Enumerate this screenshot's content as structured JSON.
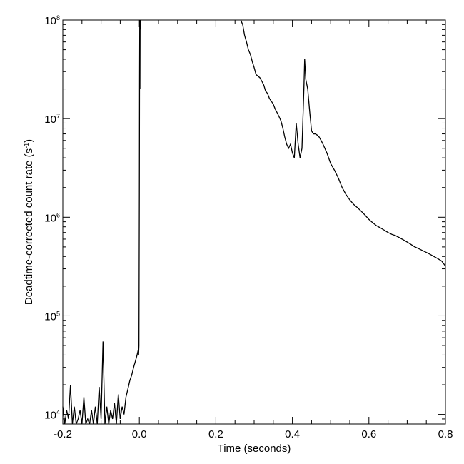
{
  "chart_data": {
    "type": "line",
    "title": "",
    "xlabel": "Time (seconds)",
    "ylabel_main": "Deadtime-corrected count rate (s",
    "ylabel_sup": "-1",
    "ylabel_close": ")",
    "xlim": [
      -0.2,
      0.8
    ],
    "ylim": [
      8000,
      100000000
    ],
    "yscale": "log",
    "grid": false,
    "legend": "none",
    "line_color": "#000000",
    "x_ticks": [
      {
        "value": -0.2,
        "label": "-0.2"
      },
      {
        "value": 0.0,
        "label": "0.0"
      },
      {
        "value": 0.2,
        "label": "0.2"
      },
      {
        "value": 0.4,
        "label": "0.4"
      },
      {
        "value": 0.6,
        "label": "0.6"
      },
      {
        "value": 0.8,
        "label": "0.8"
      }
    ],
    "y_ticks": [
      {
        "value": 10000,
        "base": "10",
        "exp": "4"
      },
      {
        "value": 100000,
        "base": "10",
        "exp": "5"
      },
      {
        "value": 1000000,
        "base": "10",
        "exp": "6"
      },
      {
        "value": 10000000,
        "base": "10",
        "exp": "7"
      },
      {
        "value": 100000000,
        "base": "10",
        "exp": "8"
      }
    ],
    "series": [
      {
        "x": [
          -0.2,
          -0.195,
          -0.19,
          -0.185,
          -0.18,
          -0.175,
          -0.17,
          -0.165,
          -0.16,
          -0.155,
          -0.15,
          -0.145,
          -0.14,
          -0.135,
          -0.13,
          -0.125,
          -0.12,
          -0.115,
          -0.11,
          -0.105,
          -0.1,
          -0.095,
          -0.09,
          -0.085,
          -0.08,
          -0.075,
          -0.07,
          -0.065,
          -0.06,
          -0.055,
          -0.05,
          -0.045,
          -0.04,
          -0.035,
          -0.03,
          -0.025,
          -0.02,
          -0.015,
          -0.01,
          -0.006,
          -0.003,
          -0.002,
          -0.001,
          0.0,
          0.0005,
          0.001,
          0.0015,
          0.002,
          0.0025,
          0.003,
          0.265,
          0.27,
          0.275,
          0.28,
          0.285,
          0.29,
          0.295,
          0.3,
          0.305,
          0.31,
          0.315,
          0.32,
          0.325,
          0.33,
          0.335,
          0.34,
          0.345,
          0.35,
          0.355,
          0.36,
          0.365,
          0.37,
          0.375,
          0.38,
          0.385,
          0.39,
          0.395,
          0.4,
          0.405,
          0.41,
          0.415,
          0.42,
          0.425,
          0.43,
          0.432,
          0.435,
          0.44,
          0.445,
          0.45,
          0.455,
          0.46,
          0.465,
          0.47,
          0.475,
          0.48,
          0.49,
          0.5,
          0.51,
          0.52,
          0.53,
          0.54,
          0.55,
          0.56,
          0.57,
          0.58,
          0.59,
          0.6,
          0.61,
          0.62,
          0.63,
          0.64,
          0.65,
          0.66,
          0.67,
          0.68,
          0.69,
          0.7,
          0.71,
          0.72,
          0.73,
          0.74,
          0.75,
          0.76,
          0.77,
          0.78,
          0.79,
          0.8
        ],
        "y": [
          12000,
          8000,
          11000,
          9000,
          20000,
          8000,
          12000,
          8000,
          9000,
          11000,
          8000,
          15000,
          8000,
          9000,
          8000,
          11000,
          8000,
          12000,
          8000,
          19000,
          9000,
          55000,
          8000,
          12000,
          8000,
          11000,
          9000,
          13000,
          8000,
          16000,
          9000,
          12000,
          10000,
          15000,
          18000,
          22000,
          25000,
          30000,
          35000,
          40000,
          45000,
          40000,
          50000,
          1800000,
          25000000,
          100000000,
          20000000,
          100000000,
          80000000,
          100000000,
          100000000,
          90000000,
          70000000,
          60000000,
          50000000,
          45000000,
          38000000,
          33000000,
          28000000,
          27000000,
          26000000,
          24000000,
          22000000,
          19000000,
          18000000,
          16000000,
          15000000,
          14000000,
          12500000,
          11500000,
          10500000,
          9500000,
          8000000,
          6500000,
          5500000,
          5000000,
          5500000,
          4500000,
          4000000,
          9000000,
          5500000,
          4000000,
          5000000,
          20000000,
          40000000,
          25000000,
          20000000,
          12000000,
          7500000,
          7000000,
          7000000,
          6800000,
          6500000,
          6000000,
          5500000,
          4500000,
          3500000,
          3000000,
          2500000,
          2000000,
          1700000,
          1500000,
          1350000,
          1250000,
          1150000,
          1050000,
          950000,
          880000,
          820000,
          780000,
          740000,
          700000,
          670000,
          650000,
          620000,
          590000,
          560000,
          530000,
          500000,
          480000,
          460000,
          440000,
          420000,
          400000,
          380000,
          360000,
          320000
        ]
      }
    ]
  }
}
